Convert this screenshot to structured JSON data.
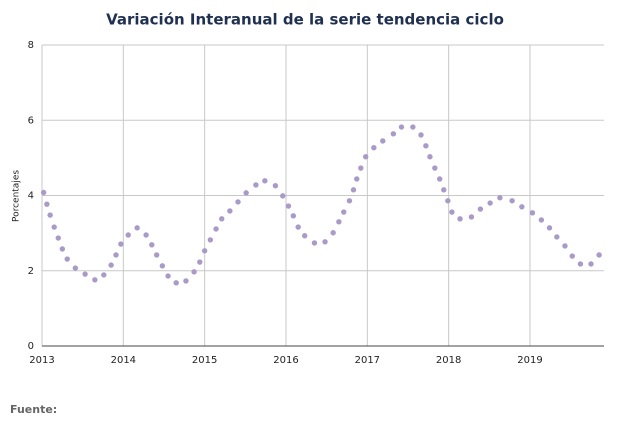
{
  "chart_data": {
    "type": "scatter",
    "title": "Variación Interanual de la serie tendencia ciclo",
    "y_label": "Porcentajes",
    "source": "Fuente:",
    "x": [
      2013.02,
      2013.06,
      2013.1,
      2013.15,
      2013.2,
      2013.25,
      2013.31,
      2013.41,
      2013.53,
      2013.65,
      2013.76,
      2013.85,
      2013.91,
      2013.97,
      2014.06,
      2014.17,
      2014.28,
      2014.35,
      2014.41,
      2014.48,
      2014.55,
      2014.65,
      2014.77,
      2014.87,
      2014.94,
      2015.0,
      2015.07,
      2015.14,
      2015.21,
      2015.31,
      2015.41,
      2015.51,
      2015.63,
      2015.74,
      2015.87,
      2015.96,
      2016.03,
      2016.09,
      2016.15,
      2016.23,
      2016.35,
      2016.48,
      2016.58,
      2016.65,
      2016.71,
      2016.78,
      2016.83,
      2016.87,
      2016.92,
      2016.98,
      2017.08,
      2017.19,
      2017.32,
      2017.42,
      2017.56,
      2017.66,
      2017.72,
      2017.77,
      2017.83,
      2017.89,
      2017.94,
      2017.99,
      2018.04,
      2018.14,
      2018.28,
      2018.39,
      2018.51,
      2018.63,
      2018.78,
      2018.9,
      2019.03,
      2019.14,
      2019.24,
      2019.33,
      2019.43,
      2019.52,
      2019.62,
      2019.75,
      2019.85
    ],
    "values": [
      4.08,
      3.77,
      3.48,
      3.16,
      2.87,
      2.58,
      2.31,
      2.07,
      1.91,
      1.76,
      1.89,
      2.15,
      2.42,
      2.71,
      2.95,
      3.14,
      2.95,
      2.69,
      2.42,
      2.13,
      1.86,
      1.68,
      1.73,
      1.97,
      2.23,
      2.53,
      2.82,
      3.11,
      3.38,
      3.59,
      3.83,
      4.07,
      4.28,
      4.39,
      4.26,
      3.99,
      3.72,
      3.46,
      3.16,
      2.93,
      2.74,
      2.77,
      3.01,
      3.3,
      3.56,
      3.86,
      4.15,
      4.44,
      4.73,
      5.03,
      5.27,
      5.45,
      5.64,
      5.82,
      5.82,
      5.61,
      5.32,
      5.03,
      4.73,
      4.44,
      4.15,
      3.86,
      3.56,
      3.38,
      3.43,
      3.64,
      3.8,
      3.94,
      3.86,
      3.7,
      3.54,
      3.35,
      3.14,
      2.9,
      2.66,
      2.39,
      2.18,
      2.18,
      2.42
    ],
    "color": "#a99ac8",
    "xlim": [
      2013,
      2019.91
    ],
    "xticks": [
      2013,
      2014,
      2015,
      2016,
      2017,
      2018,
      2019
    ],
    "ylim": [
      0,
      8
    ],
    "yticks": [
      0,
      2,
      4,
      6,
      8
    ],
    "grid": true
  }
}
